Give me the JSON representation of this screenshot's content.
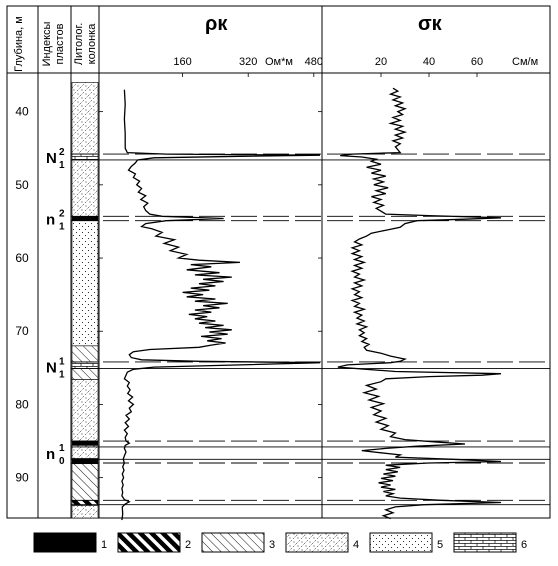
{
  "headers": {
    "depth": "Глубина, м",
    "index_line1": "Индексы",
    "index_line2": "пластов",
    "litho_line1": "Литолог.",
    "litho_line2": "колонка"
  },
  "resistivity": {
    "title": "ρк",
    "unit": "Ом*м",
    "ticks": [
      {
        "value": 160,
        "label": "160"
      },
      {
        "value": 320,
        "label": "320"
      },
      {
        "value": 480,
        "label": "480"
      }
    ],
    "range": [
      0,
      680
    ]
  },
  "conductivity": {
    "title": "σк",
    "unit": "См/м",
    "ticks": [
      {
        "value": 20,
        "label": "20"
      },
      {
        "value": 40,
        "label": "40"
      },
      {
        "value": 60,
        "label": "60"
      }
    ],
    "range": [
      0,
      80
    ]
  },
  "depth_axis": {
    "range": [
      36,
      96
    ],
    "ticks": [
      {
        "value": 40,
        "label": "40"
      },
      {
        "value": 50,
        "label": "50"
      },
      {
        "value": 60,
        "label": "60"
      },
      {
        "value": 70,
        "label": "70"
      },
      {
        "value": 80,
        "label": "80"
      },
      {
        "value": 90,
        "label": "90"
      }
    ]
  },
  "layer_indices": [
    {
      "base": "N",
      "sup": "2",
      "sub": "1",
      "depth": 46.2
    },
    {
      "base": "n",
      "sup": "2",
      "sub": "1",
      "depth": 54.6
    },
    {
      "base": "N",
      "sup": "1",
      "sub": "1",
      "depth": 74.8
    },
    {
      "base": "n",
      "sup": "1",
      "sub": "0",
      "depth": 86.6
    }
  ],
  "boundaries": [
    {
      "depth": 45.8,
      "style": "dashed"
    },
    {
      "depth": 46.6,
      "style": "solid"
    },
    {
      "depth": 54.3,
      "style": "dashed"
    },
    {
      "depth": 54.9,
      "style": "dashed"
    },
    {
      "depth": 74.2,
      "style": "dashed"
    },
    {
      "depth": 75.1,
      "style": "solid"
    },
    {
      "depth": 85.0,
      "style": "dashed"
    },
    {
      "depth": 85.8,
      "style": "solid"
    },
    {
      "depth": 87.5,
      "style": "solid"
    },
    {
      "depth": 88.0,
      "style": "dashed"
    },
    {
      "depth": 93.1,
      "style": "dashed"
    },
    {
      "depth": 93.7,
      "style": "solid"
    }
  ],
  "lithology": [
    {
      "top": 36,
      "bottom": 45.8,
      "type": 4
    },
    {
      "top": 45.8,
      "bottom": 46.6,
      "type": 6
    },
    {
      "top": 46.6,
      "bottom": 54.3,
      "type": 4
    },
    {
      "top": 54.3,
      "bottom": 54.9,
      "type": 1
    },
    {
      "top": 54.9,
      "bottom": 72.0,
      "type": 5
    },
    {
      "top": 72.0,
      "bottom": 74.2,
      "type": 3
    },
    {
      "top": 74.2,
      "bottom": 75.1,
      "type": 6
    },
    {
      "top": 75.1,
      "bottom": 76.6,
      "type": 3
    },
    {
      "top": 76.6,
      "bottom": 85.0,
      "type": 4
    },
    {
      "top": 85.0,
      "bottom": 85.6,
      "type": 1
    },
    {
      "top": 85.6,
      "bottom": 87.4,
      "type": 4
    },
    {
      "top": 87.4,
      "bottom": 88.1,
      "type": 1
    },
    {
      "top": 88.1,
      "bottom": 93.1,
      "type": 3
    },
    {
      "top": 93.1,
      "bottom": 93.8,
      "type": 2
    },
    {
      "top": 93.8,
      "bottom": 96,
      "type": 4
    }
  ],
  "legend": [
    {
      "type": 1,
      "label": "1"
    },
    {
      "type": 2,
      "label": "2"
    },
    {
      "type": 3,
      "label": "3"
    },
    {
      "type": 4,
      "label": "4"
    },
    {
      "type": 5,
      "label": "5"
    },
    {
      "type": 6,
      "label": "6"
    }
  ],
  "rho_curve": [
    [
      37.0,
      18
    ],
    [
      39.0,
      20
    ],
    [
      41.0,
      18
    ],
    [
      43.0,
      20
    ],
    [
      45.0,
      20
    ],
    [
      45.6,
      25
    ],
    [
      45.8,
      120
    ],
    [
      45.95,
      560
    ],
    [
      46.1,
      300
    ],
    [
      46.3,
      90
    ],
    [
      46.6,
      50
    ],
    [
      47.0,
      45
    ],
    [
      47.5,
      35
    ],
    [
      48.0,
      28
    ],
    [
      48.5,
      45
    ],
    [
      49.0,
      40
    ],
    [
      49.5,
      55
    ],
    [
      50.0,
      48
    ],
    [
      50.5,
      60
    ],
    [
      51.0,
      52
    ],
    [
      51.5,
      70
    ],
    [
      52.0,
      58
    ],
    [
      52.5,
      75
    ],
    [
      53.0,
      65
    ],
    [
      53.5,
      70
    ],
    [
      54.0,
      80
    ],
    [
      54.3,
      110
    ],
    [
      54.6,
      260
    ],
    [
      54.9,
      120
    ],
    [
      55.3,
      70
    ],
    [
      55.7,
      60
    ],
    [
      56.0,
      85
    ],
    [
      56.5,
      110
    ],
    [
      57.0,
      95
    ],
    [
      57.5,
      140
    ],
    [
      58.0,
      115
    ],
    [
      58.5,
      150
    ],
    [
      59.0,
      130
    ],
    [
      59.5,
      170
    ],
    [
      60.0,
      150
    ],
    [
      60.3,
      200
    ],
    [
      60.6,
      300
    ],
    [
      60.9,
      180
    ],
    [
      61.2,
      230
    ],
    [
      61.6,
      170
    ],
    [
      62.0,
      250
    ],
    [
      62.3,
      190
    ],
    [
      62.6,
      280
    ],
    [
      62.9,
      210
    ],
    [
      63.2,
      260
    ],
    [
      63.5,
      200
    ],
    [
      63.8,
      240
    ],
    [
      64.1,
      180
    ],
    [
      64.4,
      225
    ],
    [
      64.7,
      160
    ],
    [
      65.0,
      210
    ],
    [
      65.3,
      170
    ],
    [
      65.6,
      240
    ],
    [
      65.9,
      190
    ],
    [
      66.2,
      270
    ],
    [
      66.5,
      210
    ],
    [
      66.8,
      250
    ],
    [
      67.1,
      190
    ],
    [
      67.4,
      230
    ],
    [
      67.7,
      175
    ],
    [
      68.0,
      220
    ],
    [
      68.3,
      190
    ],
    [
      68.6,
      240
    ],
    [
      68.9,
      200
    ],
    [
      69.2,
      260
    ],
    [
      69.5,
      215
    ],
    [
      69.8,
      280
    ],
    [
      70.1,
      225
    ],
    [
      70.4,
      270
    ],
    [
      70.7,
      205
    ],
    [
      71.0,
      255
    ],
    [
      71.3,
      220
    ],
    [
      71.6,
      265
    ],
    [
      71.9,
      230
    ],
    [
      72.2,
      200
    ],
    [
      72.5,
      80
    ],
    [
      72.8,
      40
    ],
    [
      73.2,
      30
    ],
    [
      73.6,
      35
    ],
    [
      73.9,
      60
    ],
    [
      74.1,
      200
    ],
    [
      74.3,
      520
    ],
    [
      74.6,
      300
    ],
    [
      74.9,
      90
    ],
    [
      75.2,
      40
    ],
    [
      75.6,
      25
    ],
    [
      76.0,
      22
    ],
    [
      76.5,
      18
    ],
    [
      77.0,
      30
    ],
    [
      77.5,
      25
    ],
    [
      78.0,
      32
    ],
    [
      78.5,
      26
    ],
    [
      79.0,
      38
    ],
    [
      79.5,
      28
    ],
    [
      80.0,
      40
    ],
    [
      80.5,
      30
    ],
    [
      81.0,
      35
    ],
    [
      81.5,
      22
    ],
    [
      82.0,
      30
    ],
    [
      82.5,
      20
    ],
    [
      83.0,
      28
    ],
    [
      83.5,
      18
    ],
    [
      84.0,
      25
    ],
    [
      84.5,
      20
    ],
    [
      85.0,
      22
    ],
    [
      85.3,
      30
    ],
    [
      85.6,
      20
    ],
    [
      86.0,
      18
    ],
    [
      86.5,
      22
    ],
    [
      87.0,
      18
    ],
    [
      87.5,
      15
    ],
    [
      88.0,
      18
    ],
    [
      88.5,
      14
    ],
    [
      89.0,
      17
    ],
    [
      89.5,
      13
    ],
    [
      90.0,
      16
    ],
    [
      90.5,
      12
    ],
    [
      91.0,
      15
    ],
    [
      91.5,
      12
    ],
    [
      92.0,
      14
    ],
    [
      92.5,
      12
    ],
    [
      93.0,
      18
    ],
    [
      93.3,
      30
    ],
    [
      93.6,
      20
    ],
    [
      94.0,
      13
    ],
    [
      95.0,
      14
    ],
    [
      95.8,
      12
    ]
  ],
  "sigma_curve": [
    [
      36.8,
      25
    ],
    [
      37.2,
      27
    ],
    [
      37.6,
      24
    ],
    [
      38.0,
      28
    ],
    [
      38.4,
      25
    ],
    [
      38.8,
      29
    ],
    [
      39.2,
      26
    ],
    [
      39.6,
      30
    ],
    [
      40.0,
      27
    ],
    [
      40.4,
      29
    ],
    [
      40.8,
      25
    ],
    [
      41.2,
      28
    ],
    [
      41.6,
      24
    ],
    [
      42.0,
      29
    ],
    [
      42.4,
      26
    ],
    [
      42.8,
      30
    ],
    [
      43.2,
      26
    ],
    [
      43.6,
      29
    ],
    [
      44.0,
      25
    ],
    [
      44.4,
      28
    ],
    [
      44.8,
      26
    ],
    [
      45.2,
      27
    ],
    [
      45.6,
      28
    ],
    [
      45.8,
      8
    ],
    [
      46.0,
      3
    ],
    [
      46.2,
      12
    ],
    [
      46.5,
      18
    ],
    [
      46.8,
      16
    ],
    [
      47.2,
      20
    ],
    [
      47.6,
      14
    ],
    [
      48.0,
      20
    ],
    [
      48.4,
      16
    ],
    [
      48.8,
      22
    ],
    [
      49.2,
      17
    ],
    [
      49.6,
      21
    ],
    [
      50.0,
      17
    ],
    [
      50.4,
      23
    ],
    [
      50.8,
      18
    ],
    [
      51.2,
      22
    ],
    [
      51.6,
      16
    ],
    [
      52.0,
      20
    ],
    [
      52.4,
      17
    ],
    [
      52.8,
      21
    ],
    [
      53.2,
      18
    ],
    [
      53.6,
      20
    ],
    [
      54.0,
      22
    ],
    [
      54.2,
      40
    ],
    [
      54.5,
      70
    ],
    [
      54.7,
      55
    ],
    [
      54.9,
      35
    ],
    [
      55.3,
      30
    ],
    [
      55.8,
      28
    ],
    [
      56.2,
      22
    ],
    [
      56.6,
      16
    ],
    [
      57.0,
      14
    ],
    [
      57.4,
      11
    ],
    [
      57.8,
      9
    ],
    [
      58.2,
      12
    ],
    [
      58.6,
      8
    ],
    [
      59.0,
      11
    ],
    [
      59.4,
      8
    ],
    [
      59.8,
      12
    ],
    [
      60.2,
      9
    ],
    [
      60.6,
      13
    ],
    [
      61.0,
      9
    ],
    [
      61.4,
      12
    ],
    [
      61.8,
      8
    ],
    [
      62.2,
      11
    ],
    [
      62.6,
      9
    ],
    [
      63.0,
      13
    ],
    [
      63.4,
      9
    ],
    [
      63.8,
      12
    ],
    [
      64.2,
      8
    ],
    [
      64.6,
      11
    ],
    [
      65.0,
      9
    ],
    [
      65.4,
      12
    ],
    [
      65.8,
      8
    ],
    [
      66.2,
      11
    ],
    [
      66.6,
      9
    ],
    [
      67.0,
      13
    ],
    [
      67.4,
      9
    ],
    [
      67.8,
      12
    ],
    [
      68.2,
      10
    ],
    [
      68.6,
      13
    ],
    [
      69.0,
      10
    ],
    [
      69.4,
      14
    ],
    [
      69.8,
      11
    ],
    [
      70.2,
      13
    ],
    [
      70.6,
      11
    ],
    [
      71.0,
      14
    ],
    [
      71.4,
      12
    ],
    [
      71.8,
      15
    ],
    [
      72.2,
      13
    ],
    [
      72.6,
      14
    ],
    [
      73.0,
      20
    ],
    [
      73.4,
      24
    ],
    [
      73.8,
      30
    ],
    [
      74.1,
      28
    ],
    [
      74.3,
      24
    ],
    [
      74.6,
      6
    ],
    [
      74.9,
      2
    ],
    [
      75.2,
      14
    ],
    [
      75.5,
      26
    ],
    [
      75.8,
      70
    ],
    [
      76.0,
      62
    ],
    [
      76.2,
      40
    ],
    [
      76.5,
      22
    ],
    [
      76.9,
      20
    ],
    [
      77.4,
      14
    ],
    [
      77.9,
      18
    ],
    [
      78.4,
      13
    ],
    [
      78.9,
      19
    ],
    [
      79.4,
      15
    ],
    [
      79.9,
      21
    ],
    [
      80.4,
      16
    ],
    [
      80.9,
      20
    ],
    [
      81.4,
      17
    ],
    [
      81.9,
      22
    ],
    [
      82.4,
      18
    ],
    [
      82.9,
      23
    ],
    [
      83.4,
      20
    ],
    [
      83.9,
      26
    ],
    [
      84.4,
      24
    ],
    [
      84.8,
      30
    ],
    [
      85.1,
      42
    ],
    [
      85.4,
      55
    ],
    [
      85.7,
      35
    ],
    [
      86.0,
      22
    ],
    [
      86.3,
      12
    ],
    [
      86.6,
      20
    ],
    [
      86.9,
      28
    ],
    [
      87.2,
      26
    ],
    [
      87.5,
      50
    ],
    [
      87.8,
      70
    ],
    [
      88.0,
      40
    ],
    [
      88.3,
      22
    ],
    [
      88.6,
      28
    ],
    [
      88.9,
      22
    ],
    [
      89.2,
      27
    ],
    [
      89.5,
      21
    ],
    [
      89.8,
      26
    ],
    [
      90.1,
      20
    ],
    [
      90.4,
      25
    ],
    [
      90.7,
      19
    ],
    [
      91.0,
      24
    ],
    [
      91.3,
      20
    ],
    [
      91.6,
      26
    ],
    [
      91.9,
      21
    ],
    [
      92.2,
      25
    ],
    [
      92.5,
      22
    ],
    [
      92.8,
      28
    ],
    [
      93.1,
      45
    ],
    [
      93.4,
      70
    ],
    [
      93.7,
      38
    ],
    [
      94.0,
      26
    ],
    [
      94.4,
      22
    ],
    [
      94.8,
      25
    ],
    [
      95.2,
      21
    ],
    [
      95.6,
      24
    ]
  ]
}
